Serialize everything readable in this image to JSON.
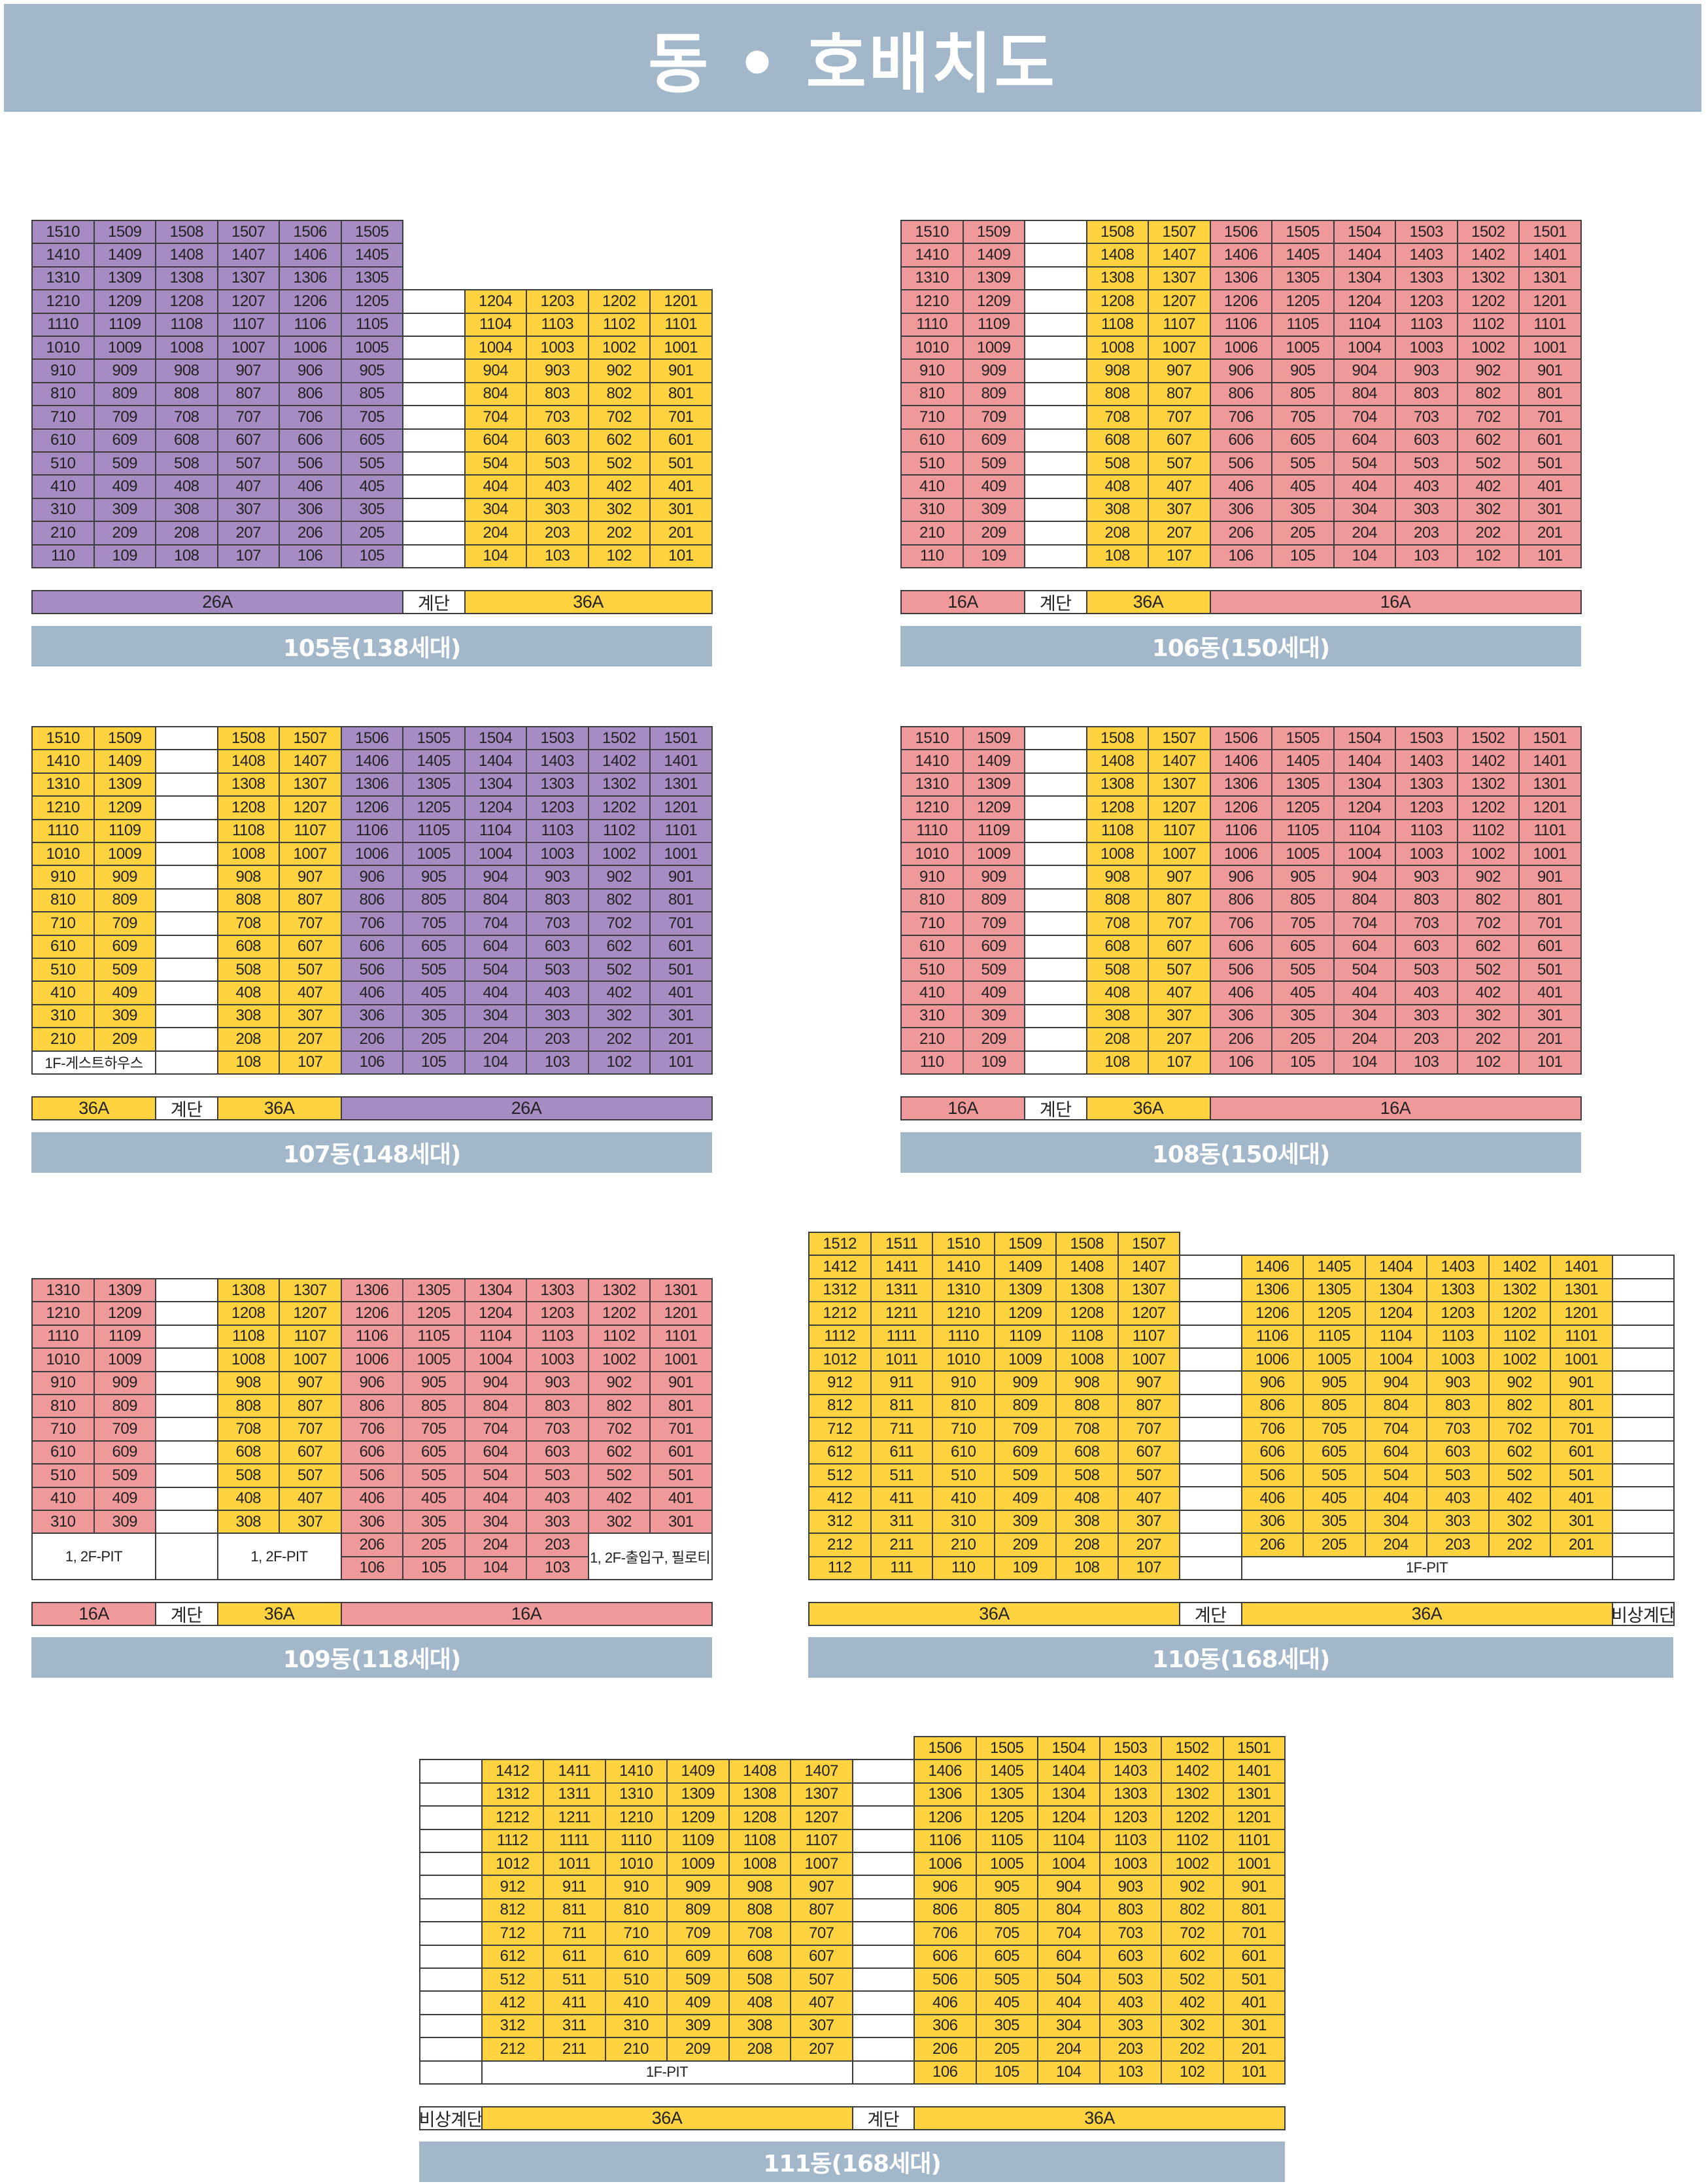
{
  "page_title": "동 • 호배치도",
  "colors": {
    "purple": "#a68cc3",
    "yellow": "#ffd23f",
    "pink": "#f0999a",
    "header": "#a2b7c9"
  },
  "buildings": [
    {
      "id": "105",
      "label": "105동(138세대)",
      "floors": [
        15,
        14,
        13,
        12,
        11,
        10,
        9,
        8,
        7,
        6,
        5,
        4,
        3,
        2,
        1
      ],
      "groups": [
        {
          "color": "purple",
          "units": [
            "10",
            "09",
            "08",
            "07",
            "06",
            "05"
          ],
          "floors": [
            15,
            1
          ]
        },
        {
          "color": "white",
          "units": [
            ""
          ],
          "floors": [
            12,
            1
          ]
        },
        {
          "color": "yellow",
          "units": [
            "04",
            "03",
            "02",
            "01"
          ],
          "floors": [
            12,
            1
          ]
        }
      ],
      "specials": [],
      "types": [
        {
          "text": "26A",
          "color": "purple",
          "cols": 6
        },
        {
          "text": "계단",
          "color": "white",
          "cols": 1
        },
        {
          "text": "36A",
          "color": "yellow",
          "cols": 4
        }
      ]
    },
    {
      "id": "106",
      "label": "106동(150세대)",
      "floors": [
        15,
        14,
        13,
        12,
        11,
        10,
        9,
        8,
        7,
        6,
        5,
        4,
        3,
        2,
        1
      ],
      "groups": [
        {
          "color": "pink",
          "units": [
            "10",
            "09"
          ],
          "floors": [
            15,
            1
          ]
        },
        {
          "color": "white",
          "units": [
            ""
          ],
          "floors": [
            15,
            1
          ]
        },
        {
          "color": "yellow",
          "units": [
            "08",
            "07"
          ],
          "floors": [
            15,
            1
          ]
        },
        {
          "color": "pink",
          "units": [
            "06",
            "05",
            "04",
            "03",
            "02",
            "01"
          ],
          "floors": [
            15,
            1
          ]
        }
      ],
      "specials": [],
      "types": [
        {
          "text": "16A",
          "color": "pink",
          "cols": 2
        },
        {
          "text": "계단",
          "color": "white",
          "cols": 1
        },
        {
          "text": "36A",
          "color": "yellow",
          "cols": 2
        },
        {
          "text": "16A",
          "color": "pink",
          "cols": 6
        }
      ]
    },
    {
      "id": "107",
      "label": "107동(148세대)",
      "floors": [
        15,
        14,
        13,
        12,
        11,
        10,
        9,
        8,
        7,
        6,
        5,
        4,
        3,
        2,
        1
      ],
      "groups": [
        {
          "color": "yellow",
          "units": [
            "10",
            "09"
          ],
          "floors": [
            15,
            2
          ]
        },
        {
          "color": "white",
          "units": [
            ""
          ],
          "floors": [
            15,
            1
          ]
        },
        {
          "color": "yellow",
          "units": [
            "08",
            "07"
          ],
          "floors": [
            15,
            1
          ]
        },
        {
          "color": "purple",
          "units": [
            "06",
            "05",
            "04",
            "03",
            "02",
            "01"
          ],
          "floors": [
            15,
            1
          ]
        }
      ],
      "specials": [
        {
          "text": "1F-게스트하우스",
          "cols": 2,
          "rows": 1,
          "top_floor": 1,
          "col_start": 0
        }
      ],
      "types": [
        {
          "text": "36A",
          "color": "yellow",
          "cols": 2
        },
        {
          "text": "계단",
          "color": "white",
          "cols": 1
        },
        {
          "text": "36A",
          "color": "yellow",
          "cols": 2
        },
        {
          "text": "26A",
          "color": "purple",
          "cols": 6
        }
      ]
    },
    {
      "id": "108",
      "label": "108동(150세대)",
      "floors": [
        15,
        14,
        13,
        12,
        11,
        10,
        9,
        8,
        7,
        6,
        5,
        4,
        3,
        2,
        1
      ],
      "groups": [
        {
          "color": "pink",
          "units": [
            "10",
            "09"
          ],
          "floors": [
            15,
            1
          ]
        },
        {
          "color": "white",
          "units": [
            ""
          ],
          "floors": [
            15,
            1
          ]
        },
        {
          "color": "yellow",
          "units": [
            "08",
            "07"
          ],
          "floors": [
            15,
            1
          ]
        },
        {
          "color": "pink",
          "units": [
            "06",
            "05",
            "04",
            "03",
            "02",
            "01"
          ],
          "floors": [
            15,
            1
          ]
        }
      ],
      "specials": [],
      "types": [
        {
          "text": "16A",
          "color": "pink",
          "cols": 2
        },
        {
          "text": "계단",
          "color": "white",
          "cols": 1
        },
        {
          "text": "36A",
          "color": "yellow",
          "cols": 2
        },
        {
          "text": "16A",
          "color": "pink",
          "cols": 6
        }
      ]
    },
    {
      "id": "109",
      "label": "109동(118세대)",
      "floors": [
        13,
        12,
        11,
        10,
        9,
        8,
        7,
        6,
        5,
        4,
        3,
        2,
        1
      ],
      "groups": [
        {
          "color": "pink",
          "units": [
            "10",
            "09"
          ],
          "floors": [
            13,
            3
          ]
        },
        {
          "color": "white",
          "units": [
            ""
          ],
          "floors": [
            13,
            3
          ]
        },
        {
          "color": "yellow",
          "units": [
            "08",
            "07"
          ],
          "floors": [
            13,
            3
          ]
        },
        {
          "color": "pink",
          "units": [
            "06",
            "05",
            "04",
            "03"
          ],
          "floors": [
            13,
            1
          ]
        },
        {
          "color": "pink",
          "units": [
            "02",
            "01"
          ],
          "floors": [
            13,
            3
          ]
        }
      ],
      "specials": [
        {
          "text": "1, 2F-PIT",
          "cols": 2,
          "rows": 2,
          "top_floor": 2,
          "col_start": 0
        },
        {
          "text": "",
          "cols": 1,
          "rows": 2,
          "top_floor": 2,
          "col_start": 2
        },
        {
          "text": "1, 2F-PIT",
          "cols": 2,
          "rows": 2,
          "top_floor": 2,
          "col_start": 3
        },
        {
          "text": "1, 2F-출입구, 필로티",
          "cols": 2,
          "rows": 2,
          "top_floor": 2,
          "col_start": 9
        }
      ],
      "types": [
        {
          "text": "16A",
          "color": "pink",
          "cols": 2
        },
        {
          "text": "계단",
          "color": "white",
          "cols": 1
        },
        {
          "text": "36A",
          "color": "yellow",
          "cols": 2
        },
        {
          "text": "16A",
          "color": "pink",
          "cols": 6
        }
      ]
    },
    {
      "id": "110",
      "label": "110동(168세대)",
      "floors": [
        15,
        14,
        13,
        12,
        11,
        10,
        9,
        8,
        7,
        6,
        5,
        4,
        3,
        2,
        1
      ],
      "groups": [
        {
          "color": "yellow",
          "units": [
            "12",
            "11",
            "10",
            "09",
            "08",
            "07"
          ],
          "floors": [
            15,
            1
          ]
        },
        {
          "color": "white",
          "units": [
            ""
          ],
          "floors": [
            14,
            1
          ]
        },
        {
          "color": "yellow",
          "units": [
            "06",
            "05",
            "04",
            "03",
            "02",
            "01"
          ],
          "floors": [
            14,
            2
          ]
        },
        {
          "color": "white",
          "units": [
            ""
          ],
          "floors": [
            14,
            1
          ]
        }
      ],
      "specials": [
        {
          "text": "1F-PIT",
          "cols": 6,
          "rows": 1,
          "top_floor": 1,
          "col_start": 7
        }
      ],
      "types": [
        {
          "text": "36A",
          "color": "yellow",
          "cols": 6
        },
        {
          "text": "계단",
          "color": "white",
          "cols": 1
        },
        {
          "text": "36A",
          "color": "yellow",
          "cols": 6
        },
        {
          "text": "비상계단",
          "color": "white",
          "cols": 1
        }
      ]
    },
    {
      "id": "111",
      "label": "111동(168세대)",
      "floors": [
        15,
        14,
        13,
        12,
        11,
        10,
        9,
        8,
        7,
        6,
        5,
        4,
        3,
        2,
        1
      ],
      "groups": [
        {
          "color": "white",
          "units": [
            ""
          ],
          "floors": [
            14,
            1
          ]
        },
        {
          "color": "yellow",
          "units": [
            "12",
            "11",
            "10",
            "09",
            "08",
            "07"
          ],
          "floors": [
            14,
            2
          ]
        },
        {
          "color": "white",
          "units": [
            ""
          ],
          "floors": [
            14,
            1
          ]
        },
        {
          "color": "yellow",
          "units": [
            "06",
            "05",
            "04",
            "03",
            "02",
            "01"
          ],
          "floors": [
            15,
            1
          ]
        }
      ],
      "specials": [
        {
          "text": "1F-PIT",
          "cols": 6,
          "rows": 1,
          "top_floor": 1,
          "col_start": 1
        }
      ],
      "types": [
        {
          "text": "비상계단",
          "color": "white",
          "cols": 1
        },
        {
          "text": "36A",
          "color": "yellow",
          "cols": 6
        },
        {
          "text": "계단",
          "color": "white",
          "cols": 1
        },
        {
          "text": "36A",
          "color": "yellow",
          "cols": 6
        }
      ]
    }
  ]
}
